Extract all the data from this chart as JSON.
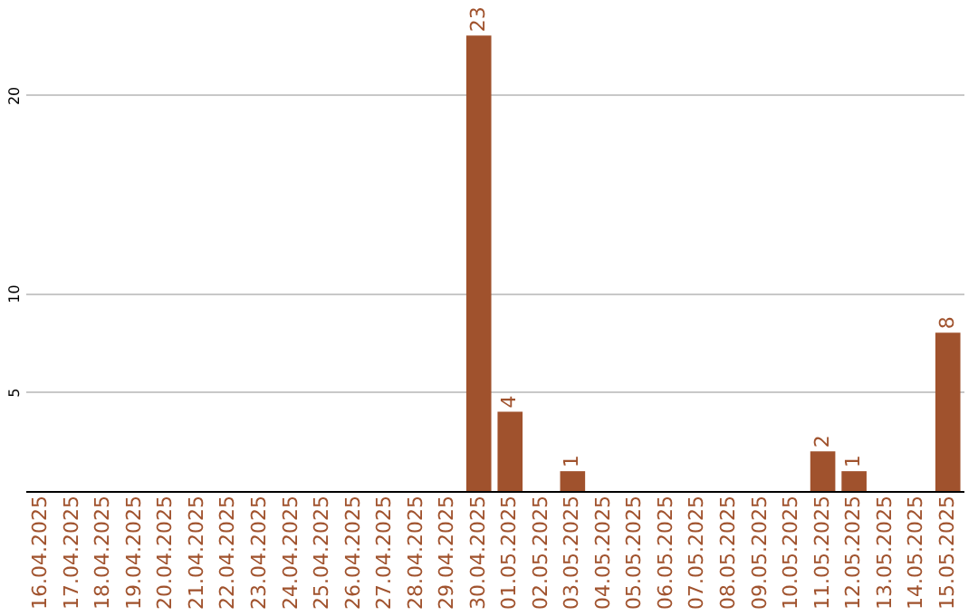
{
  "chart_data": {
    "type": "bar",
    "categories": [
      "16.04.2025",
      "17.04.2025",
      "18.04.2025",
      "19.04.2025",
      "20.04.2025",
      "21.04.2025",
      "22.04.2025",
      "23.04.2025",
      "24.04.2025",
      "25.04.2025",
      "26.04.2025",
      "27.04.2025",
      "28.04.2025",
      "29.04.2025",
      "30.04.2025",
      "01.05.2025",
      "02.05.2025",
      "03.05.2025",
      "04.05.2025",
      "05.05.2025",
      "06.05.2025",
      "07.05.2025",
      "08.05.2025",
      "09.05.2025",
      "10.05.2025",
      "11.05.2025",
      "12.05.2025",
      "13.05.2025",
      "14.05.2025",
      "15.05.2025"
    ],
    "values": [
      null,
      null,
      null,
      null,
      null,
      null,
      null,
      null,
      null,
      null,
      null,
      null,
      null,
      null,
      23,
      4,
      null,
      1,
      null,
      null,
      null,
      null,
      null,
      null,
      null,
      2,
      1,
      null,
      null,
      8
    ],
    "color": "#a0522d",
    "ylim": [
      0,
      24.8
    ],
    "yticks": [
      5,
      10,
      20
    ],
    "grid": "y",
    "data_labels": true
  }
}
